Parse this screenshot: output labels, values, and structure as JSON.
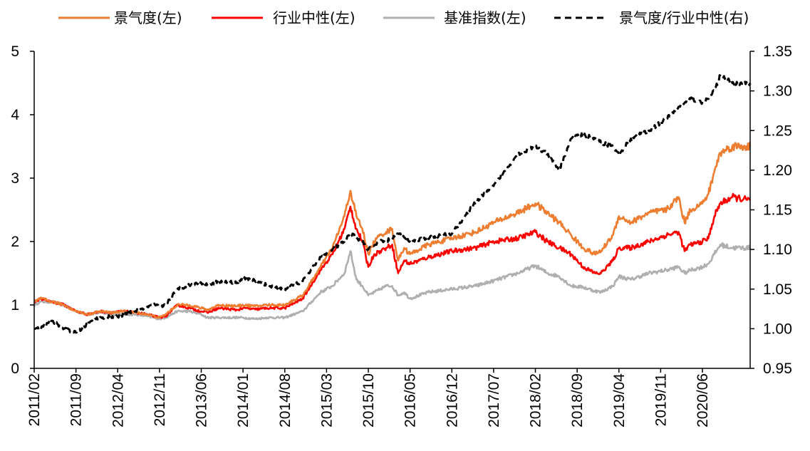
{
  "chart_data": {
    "type": "line",
    "title": "",
    "xlabel": "",
    "ylabel_left": "",
    "ylabel_right": "",
    "ylim_left": [
      0,
      5
    ],
    "ylim_right": [
      0.95,
      1.35
    ],
    "yticks_left": [
      "0",
      "1",
      "2",
      "3",
      "4",
      "5"
    ],
    "yticks_right": [
      "0.95",
      "1.00",
      "1.05",
      "1.10",
      "1.15",
      "1.20",
      "1.25",
      "1.30",
      "1.35"
    ],
    "x_ticks": [
      "2011/02",
      "2011/09",
      "2012/04",
      "2012/11",
      "2013/06",
      "2014/01",
      "2014/08",
      "2015/03",
      "2015/10",
      "2016/05",
      "2016/12",
      "2017/07",
      "2018/02",
      "2018/09",
      "2019/04",
      "2019/11",
      "2020/06"
    ],
    "x_tick_index": [
      0,
      7,
      14,
      21,
      28,
      35,
      42,
      49,
      56,
      63,
      70,
      77,
      84,
      91,
      98,
      105,
      112
    ],
    "x_range": [
      0,
      120
    ],
    "legend_position": "top",
    "legend": [
      {
        "name": "景气度(左)",
        "color": "#ED7D31",
        "style": "solid"
      },
      {
        "name": "行业中性(左)",
        "color": "#FF0000",
        "style": "solid"
      },
      {
        "name": "基准指数(左)",
        "color": "#AFAFAF",
        "style": "solid"
      },
      {
        "name": "景气度/行业中性(右)",
        "color": "#000000",
        "style": "dashed"
      }
    ],
    "series": [
      {
        "name": "基准指数(左)",
        "axis": "left",
        "color": "#AFAFAF",
        "style": "solid",
        "points": [
          [
            0,
            1.0
          ],
          [
            1,
            1.05
          ],
          [
            3,
            1.05
          ],
          [
            5,
            1.0
          ],
          [
            7,
            0.9
          ],
          [
            9,
            0.85
          ],
          [
            11,
            0.88
          ],
          [
            13,
            0.85
          ],
          [
            15,
            0.85
          ],
          [
            17,
            0.85
          ],
          [
            19,
            0.82
          ],
          [
            21,
            0.78
          ],
          [
            22,
            0.8
          ],
          [
            24,
            0.9
          ],
          [
            26,
            0.9
          ],
          [
            28,
            0.85
          ],
          [
            29,
            0.8
          ],
          [
            31,
            0.8
          ],
          [
            34,
            0.8
          ],
          [
            35,
            0.8
          ],
          [
            37,
            0.78
          ],
          [
            39,
            0.8
          ],
          [
            42,
            0.8
          ],
          [
            45,
            0.9
          ],
          [
            48,
            1.2
          ],
          [
            50,
            1.3
          ],
          [
            52,
            1.5
          ],
          [
            53,
            1.85
          ],
          [
            54,
            1.4
          ],
          [
            55,
            1.3
          ],
          [
            56,
            1.15
          ],
          [
            57,
            1.2
          ],
          [
            58,
            1.25
          ],
          [
            59,
            1.3
          ],
          [
            60,
            1.3
          ],
          [
            61,
            1.15
          ],
          [
            62,
            1.2
          ],
          [
            63,
            1.1
          ],
          [
            66,
            1.2
          ],
          [
            70,
            1.25
          ],
          [
            74,
            1.3
          ],
          [
            77,
            1.38
          ],
          [
            81,
            1.5
          ],
          [
            84,
            1.62
          ],
          [
            86,
            1.5
          ],
          [
            88,
            1.45
          ],
          [
            90,
            1.3
          ],
          [
            92,
            1.28
          ],
          [
            94,
            1.22
          ],
          [
            95,
            1.2
          ],
          [
            97,
            1.3
          ],
          [
            98,
            1.45
          ],
          [
            100,
            1.4
          ],
          [
            103,
            1.5
          ],
          [
            106,
            1.55
          ],
          [
            108,
            1.6
          ],
          [
            109,
            1.5
          ],
          [
            110,
            1.55
          ],
          [
            112,
            1.6
          ],
          [
            113,
            1.65
          ],
          [
            114,
            1.8
          ],
          [
            115,
            1.95
          ],
          [
            117,
            1.9
          ],
          [
            120,
            1.9
          ]
        ]
      },
      {
        "name": "行业中性(左)",
        "axis": "left",
        "color": "#FF0000",
        "style": "solid",
        "points": [
          [
            0,
            1.05
          ],
          [
            1,
            1.1
          ],
          [
            3,
            1.05
          ],
          [
            5,
            1.0
          ],
          [
            7,
            0.9
          ],
          [
            9,
            0.85
          ],
          [
            11,
            0.9
          ],
          [
            13,
            0.88
          ],
          [
            15,
            0.9
          ],
          [
            17,
            0.88
          ],
          [
            19,
            0.85
          ],
          [
            21,
            0.8
          ],
          [
            22,
            0.82
          ],
          [
            24,
            1.0
          ],
          [
            26,
            0.95
          ],
          [
            28,
            0.9
          ],
          [
            29,
            0.88
          ],
          [
            31,
            0.95
          ],
          [
            34,
            0.92
          ],
          [
            35,
            0.95
          ],
          [
            37,
            0.93
          ],
          [
            39,
            0.95
          ],
          [
            42,
            0.95
          ],
          [
            45,
            1.1
          ],
          [
            48,
            1.55
          ],
          [
            50,
            1.8
          ],
          [
            52,
            2.2
          ],
          [
            53,
            2.55
          ],
          [
            54,
            2.2
          ],
          [
            55,
            2.0
          ],
          [
            56,
            1.6
          ],
          [
            57,
            1.8
          ],
          [
            58,
            1.85
          ],
          [
            59,
            1.9
          ],
          [
            60,
            1.95
          ],
          [
            61,
            1.5
          ],
          [
            62,
            1.7
          ],
          [
            63,
            1.65
          ],
          [
            66,
            1.75
          ],
          [
            70,
            1.85
          ],
          [
            74,
            1.9
          ],
          [
            77,
            2.0
          ],
          [
            81,
            2.05
          ],
          [
            84,
            2.15
          ],
          [
            86,
            2.0
          ],
          [
            88,
            1.9
          ],
          [
            90,
            1.8
          ],
          [
            92,
            1.6
          ],
          [
            94,
            1.5
          ],
          [
            95,
            1.5
          ],
          [
            97,
            1.7
          ],
          [
            98,
            1.9
          ],
          [
            100,
            1.9
          ],
          [
            103,
            2.0
          ],
          [
            106,
            2.1
          ],
          [
            108,
            2.15
          ],
          [
            109,
            1.85
          ],
          [
            110,
            1.95
          ],
          [
            112,
            2.0
          ],
          [
            113,
            2.05
          ],
          [
            114,
            2.4
          ],
          [
            115,
            2.6
          ],
          [
            117,
            2.7
          ],
          [
            120,
            2.65
          ]
        ]
      },
      {
        "name": "景气度(左)",
        "axis": "left",
        "color": "#ED7D31",
        "style": "solid",
        "points": [
          [
            0,
            1.05
          ],
          [
            1,
            1.1
          ],
          [
            3,
            1.05
          ],
          [
            5,
            1.0
          ],
          [
            7,
            0.9
          ],
          [
            9,
            0.85
          ],
          [
            11,
            0.9
          ],
          [
            13,
            0.88
          ],
          [
            15,
            0.9
          ],
          [
            17,
            0.88
          ],
          [
            19,
            0.85
          ],
          [
            21,
            0.8
          ],
          [
            22,
            0.85
          ],
          [
            24,
            1.0
          ],
          [
            26,
            1.0
          ],
          [
            28,
            0.95
          ],
          [
            29,
            0.92
          ],
          [
            31,
            1.0
          ],
          [
            34,
            0.98
          ],
          [
            35,
            1.0
          ],
          [
            37,
            0.98
          ],
          [
            39,
            1.0
          ],
          [
            42,
            1.0
          ],
          [
            45,
            1.15
          ],
          [
            48,
            1.6
          ],
          [
            50,
            1.9
          ],
          [
            52,
            2.4
          ],
          [
            53,
            2.8
          ],
          [
            54,
            2.4
          ],
          [
            55,
            2.2
          ],
          [
            56,
            1.8
          ],
          [
            57,
            2.0
          ],
          [
            58,
            2.1
          ],
          [
            59,
            2.15
          ],
          [
            60,
            2.2
          ],
          [
            61,
            1.7
          ],
          [
            62,
            1.9
          ],
          [
            63,
            1.8
          ],
          [
            66,
            1.95
          ],
          [
            70,
            2.05
          ],
          [
            74,
            2.15
          ],
          [
            77,
            2.3
          ],
          [
            81,
            2.45
          ],
          [
            84,
            2.6
          ],
          [
            86,
            2.45
          ],
          [
            88,
            2.3
          ],
          [
            90,
            2.1
          ],
          [
            92,
            1.9
          ],
          [
            94,
            1.8
          ],
          [
            95,
            1.85
          ],
          [
            97,
            2.1
          ],
          [
            98,
            2.4
          ],
          [
            100,
            2.3
          ],
          [
            103,
            2.45
          ],
          [
            106,
            2.5
          ],
          [
            108,
            2.7
          ],
          [
            109,
            2.3
          ],
          [
            110,
            2.5
          ],
          [
            112,
            2.6
          ],
          [
            113,
            2.75
          ],
          [
            114,
            3.1
          ],
          [
            115,
            3.4
          ],
          [
            117,
            3.5
          ],
          [
            120,
            3.5
          ]
        ]
      },
      {
        "name": "景气度/行业中性(右)",
        "axis": "right",
        "color": "#000000",
        "style": "dashed",
        "points": [
          [
            0,
            1.0
          ],
          [
            1,
            1.0
          ],
          [
            3,
            1.01
          ],
          [
            5,
            1.0
          ],
          [
            7,
            0.995
          ],
          [
            8,
            1.0
          ],
          [
            10,
            1.012
          ],
          [
            12,
            1.015
          ],
          [
            14,
            1.015
          ],
          [
            16,
            1.02
          ],
          [
            18,
            1.025
          ],
          [
            20,
            1.03
          ],
          [
            21,
            1.028
          ],
          [
            22,
            1.03
          ],
          [
            24,
            1.05
          ],
          [
            26,
            1.055
          ],
          [
            28,
            1.058
          ],
          [
            29,
            1.055
          ],
          [
            31,
            1.06
          ],
          [
            34,
            1.058
          ],
          [
            35,
            1.065
          ],
          [
            37,
            1.06
          ],
          [
            39,
            1.055
          ],
          [
            42,
            1.05
          ],
          [
            45,
            1.06
          ],
          [
            48,
            1.09
          ],
          [
            50,
            1.1
          ],
          [
            52,
            1.11
          ],
          [
            53,
            1.12
          ],
          [
            54,
            1.115
          ],
          [
            55,
            1.11
          ],
          [
            56,
            1.1
          ],
          [
            57,
            1.105
          ],
          [
            58,
            1.11
          ],
          [
            59,
            1.11
          ],
          [
            60,
            1.115
          ],
          [
            61,
            1.12
          ],
          [
            62,
            1.115
          ],
          [
            63,
            1.11
          ],
          [
            66,
            1.115
          ],
          [
            70,
            1.12
          ],
          [
            72,
            1.14
          ],
          [
            74,
            1.16
          ],
          [
            77,
            1.18
          ],
          [
            79,
            1.2
          ],
          [
            81,
            1.22
          ],
          [
            84,
            1.23
          ],
          [
            86,
            1.22
          ],
          [
            88,
            1.2
          ],
          [
            90,
            1.24
          ],
          [
            92,
            1.245
          ],
          [
            94,
            1.24
          ],
          [
            95,
            1.235
          ],
          [
            97,
            1.23
          ],
          [
            98,
            1.22
          ],
          [
            100,
            1.24
          ],
          [
            103,
            1.25
          ],
          [
            106,
            1.265
          ],
          [
            108,
            1.28
          ],
          [
            109,
            1.285
          ],
          [
            110,
            1.29
          ],
          [
            112,
            1.285
          ],
          [
            113,
            1.29
          ],
          [
            114,
            1.3
          ],
          [
            115,
            1.32
          ],
          [
            117,
            1.31
          ],
          [
            120,
            1.31
          ]
        ]
      }
    ]
  }
}
